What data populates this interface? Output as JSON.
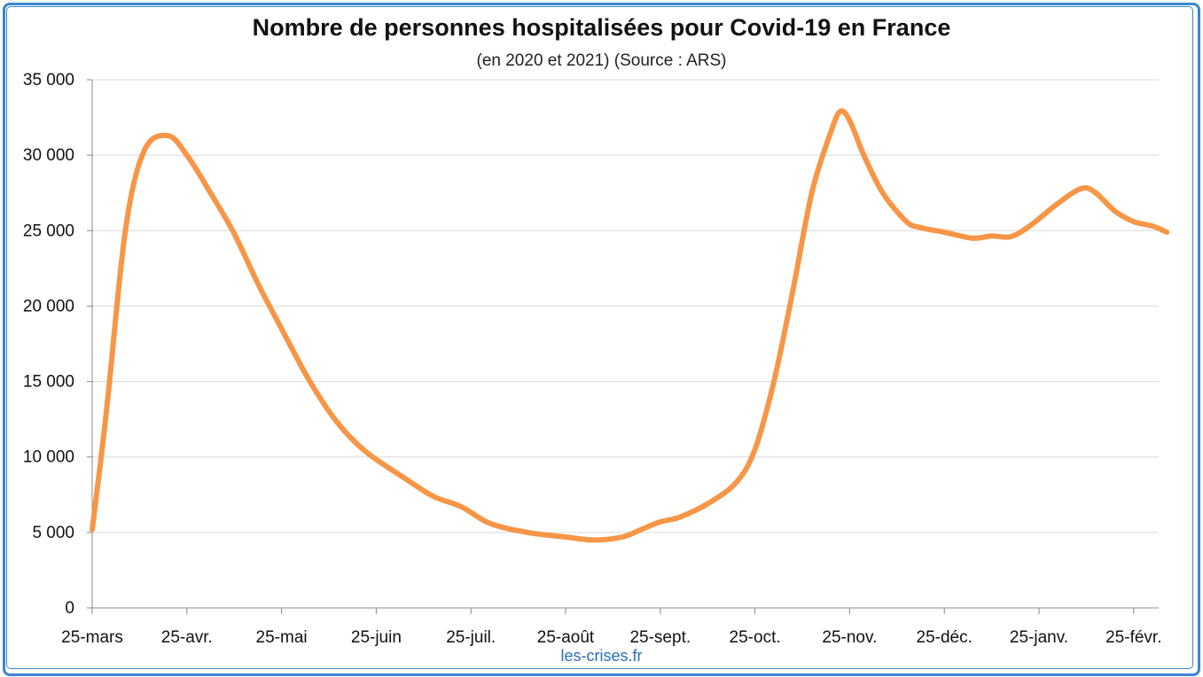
{
  "chart_data": {
    "type": "line",
    "title": "Nombre de personnes hospitalisées pour Covid-19 en France",
    "subtitle": "(en 2020 et 2021) (Source : ARS)",
    "xlabel": "",
    "ylabel": "",
    "ylim": [
      0,
      35000
    ],
    "y_ticks": [
      0,
      5000,
      10000,
      15000,
      20000,
      25000,
      30000,
      35000
    ],
    "y_tick_labels": [
      "0",
      "5 000",
      "10 000",
      "15 000",
      "20 000",
      "25 000",
      "30 000",
      "35 000"
    ],
    "x_tick_labels": [
      "25-mars",
      "25-avr.",
      "25-mai",
      "25-juin",
      "25-juil.",
      "25-août",
      "25-sept.",
      "25-oct.",
      "25-nov.",
      "25-déc.",
      "25-janv.",
      "25-févr."
    ],
    "grid": true,
    "legend": "none",
    "line_color": "#f79646",
    "series": [
      {
        "values": [
          [
            0,
            5200
          ],
          [
            0.15,
            13000
          ],
          [
            0.35,
            25000
          ],
          [
            0.55,
            30300
          ],
          [
            0.8,
            31300
          ],
          [
            1.0,
            30000
          ],
          [
            1.25,
            27500
          ],
          [
            1.5,
            24800
          ],
          [
            1.75,
            21500
          ],
          [
            2.0,
            18500
          ],
          [
            2.3,
            15000
          ],
          [
            2.6,
            12200
          ],
          [
            2.9,
            10300
          ],
          [
            3.3,
            8600
          ],
          [
            3.6,
            7400
          ],
          [
            3.9,
            6700
          ],
          [
            4.2,
            5600
          ],
          [
            4.6,
            5000
          ],
          [
            5.0,
            4700
          ],
          [
            5.3,
            4500
          ],
          [
            5.6,
            4700
          ],
          [
            5.8,
            5200
          ],
          [
            6.0,
            5700
          ],
          [
            6.2,
            6000
          ],
          [
            6.5,
            6900
          ],
          [
            6.8,
            8300
          ],
          [
            7.0,
            10500
          ],
          [
            7.2,
            15000
          ],
          [
            7.4,
            21000
          ],
          [
            7.6,
            27500
          ],
          [
            7.8,
            31500
          ],
          [
            7.9,
            32900
          ],
          [
            8.0,
            32300
          ],
          [
            8.15,
            30000
          ],
          [
            8.35,
            27500
          ],
          [
            8.6,
            25600
          ],
          [
            8.75,
            25200
          ],
          [
            9.0,
            24900
          ],
          [
            9.3,
            24500
          ],
          [
            9.5,
            24650
          ],
          [
            9.7,
            24600
          ],
          [
            9.9,
            25300
          ],
          [
            10.2,
            26800
          ],
          [
            10.45,
            27800
          ],
          [
            10.6,
            27500
          ],
          [
            10.8,
            26300
          ],
          [
            11.0,
            25600
          ],
          [
            11.2,
            25300
          ],
          [
            11.35,
            24900
          ]
        ]
      }
    ]
  },
  "credit": "les-crises.fr"
}
